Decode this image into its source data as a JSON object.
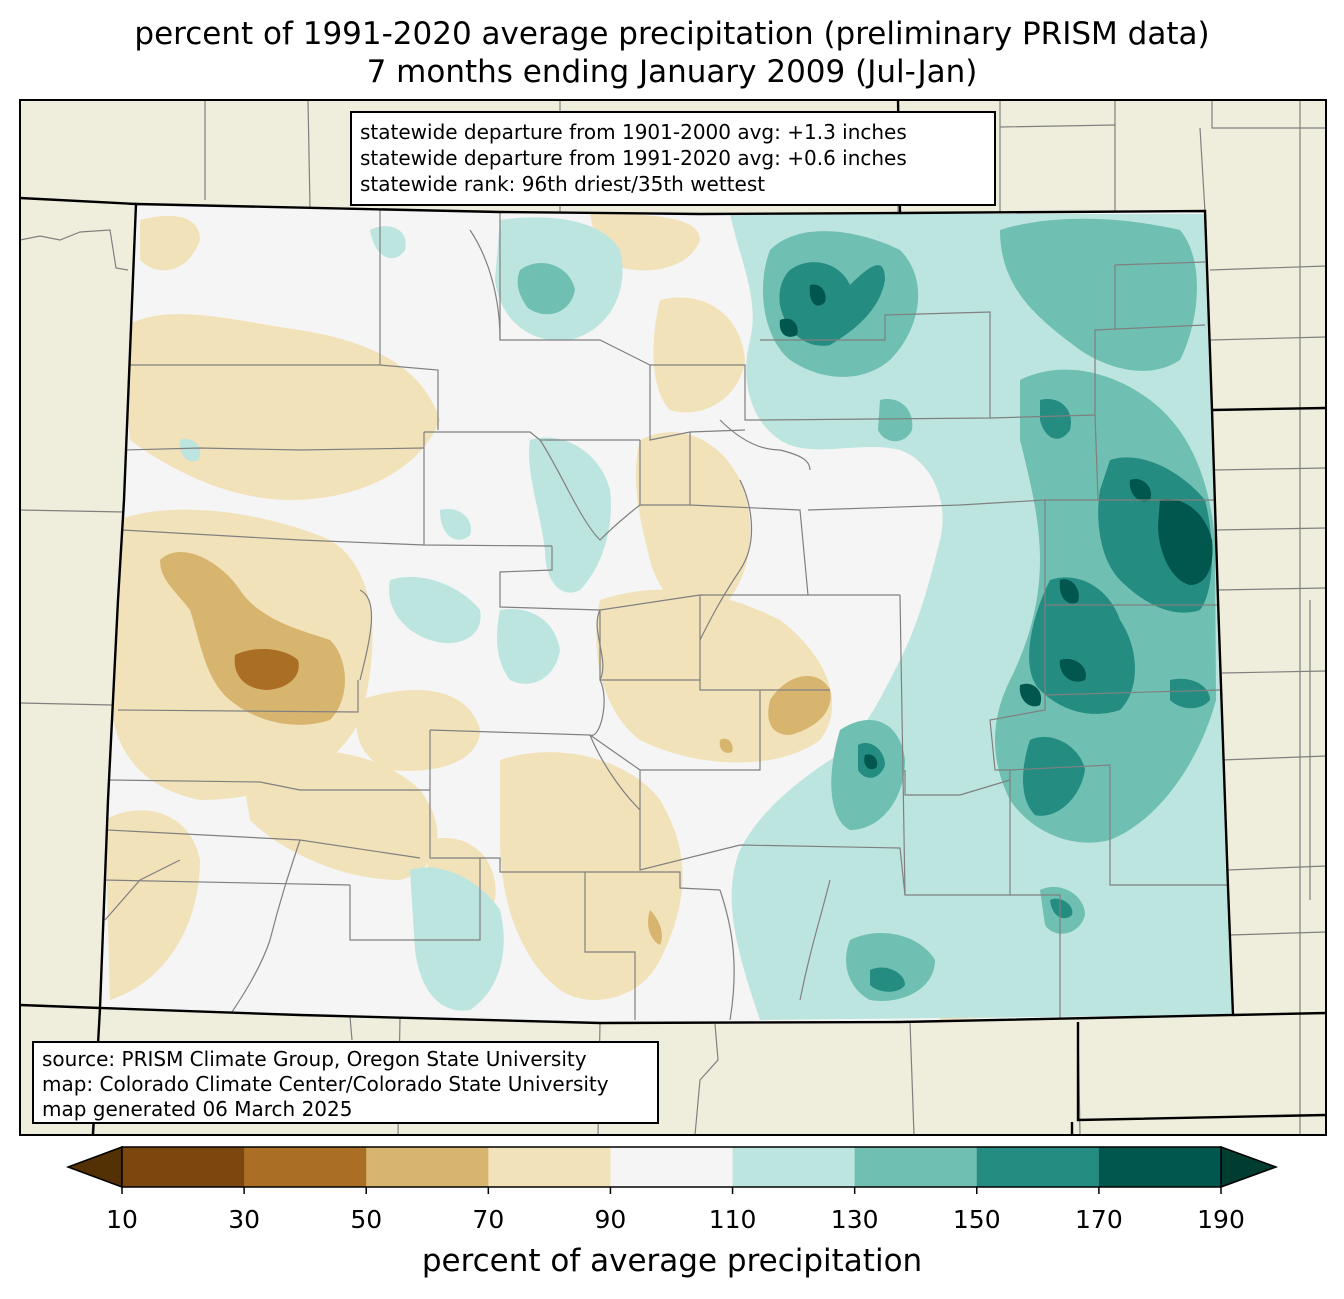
{
  "title_line1": "percent of 1991-2020 average precipitation (preliminary PRISM data)",
  "title_line2": "7 months ending January 2009 (Jul-Jan)",
  "stats_lines": [
    "statewide departure from 1901-2000 avg: +1.3 inches",
    "statewide departure from 1991-2020 avg: +0.6 inches",
    "statewide rank: 96th driest/35th wettest"
  ],
  "source_lines": [
    "source: PRISM Climate Group, Oregon State University",
    "map: Colorado Climate Center/Colorado State University",
    "map generated 06 March 2025"
  ],
  "colorbar": {
    "label": "percent of average precipitation",
    "ticks": [
      "10",
      "30",
      "50",
      "70",
      "90",
      "110",
      "130",
      "150",
      "170",
      "190"
    ],
    "under_color": "#543005",
    "over_color": "#003c30",
    "colors": [
      "#7b470f",
      "#aa6f25",
      "#d8b56f",
      "#f2e2b9",
      "#f4f5f4",
      "#bde5df",
      "#6fbfb2",
      "#248c81",
      "#01574d"
    ]
  },
  "map_colors": {
    "background": "#efeddb",
    "county_line": "#808080",
    "state_line": "#000000"
  }
}
